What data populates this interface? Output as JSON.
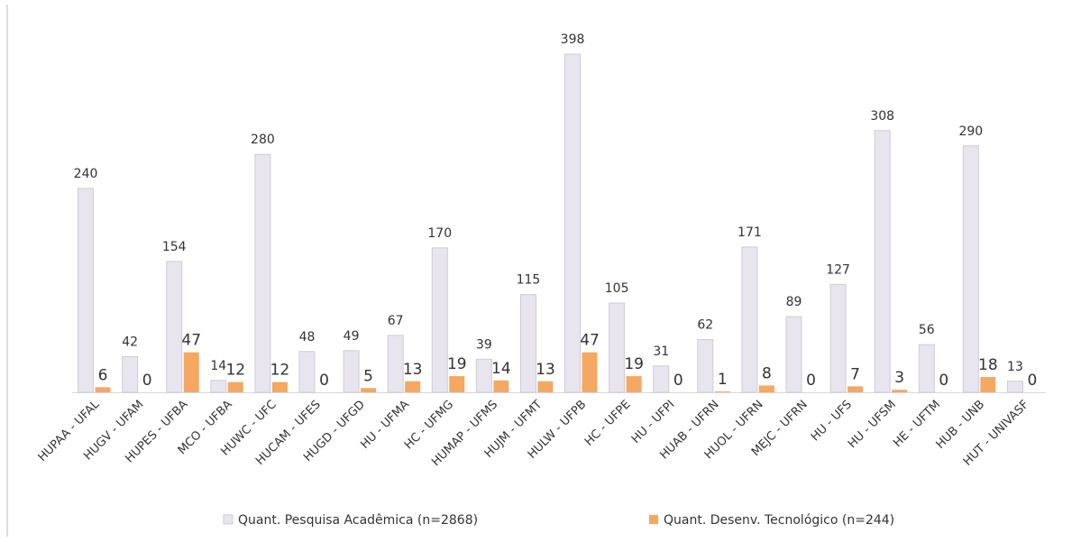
{
  "chart_data": {
    "type": "bar",
    "categories": [
      "HUPAA - UFAL",
      "HUGV - UFAM",
      "HUPES - UFBA",
      "MCO - UFBA",
      "HUWC - UFC",
      "HUCAM - UFES",
      "HUGD - UFGD",
      "HU - UFMA",
      "HC - UFMG",
      "HUMAP - UFMS",
      "HUJM - UFMT",
      "HULW - UFPB",
      "HC - UFPE",
      "HU - UFPI",
      "HUAB - UFRN",
      "HUOL - UFRN",
      "MEJC - UFRN",
      "HU - UFS",
      "HU - UFSM",
      "HE - UFTM",
      "HUB - UNB",
      "HUT - UNIVASF"
    ],
    "series": [
      {
        "name": "Quant. Pesquisa Acadêmica (n=2868)",
        "color": "#e8e5ef",
        "values": [
          240,
          42,
          154,
          14,
          280,
          48,
          49,
          67,
          170,
          39,
          115,
          398,
          105,
          31,
          62,
          171,
          89,
          127,
          308,
          56,
          290,
          13
        ]
      },
      {
        "name": "Quant. Desenv. Tecnológico (n=244)",
        "color": "#f4a862",
        "values": [
          6,
          0,
          47,
          12,
          12,
          0,
          5,
          13,
          19,
          14,
          13,
          47,
          19,
          0,
          1,
          8,
          0,
          7,
          3,
          0,
          18,
          0
        ]
      }
    ],
    "legend": "bottom"
  }
}
